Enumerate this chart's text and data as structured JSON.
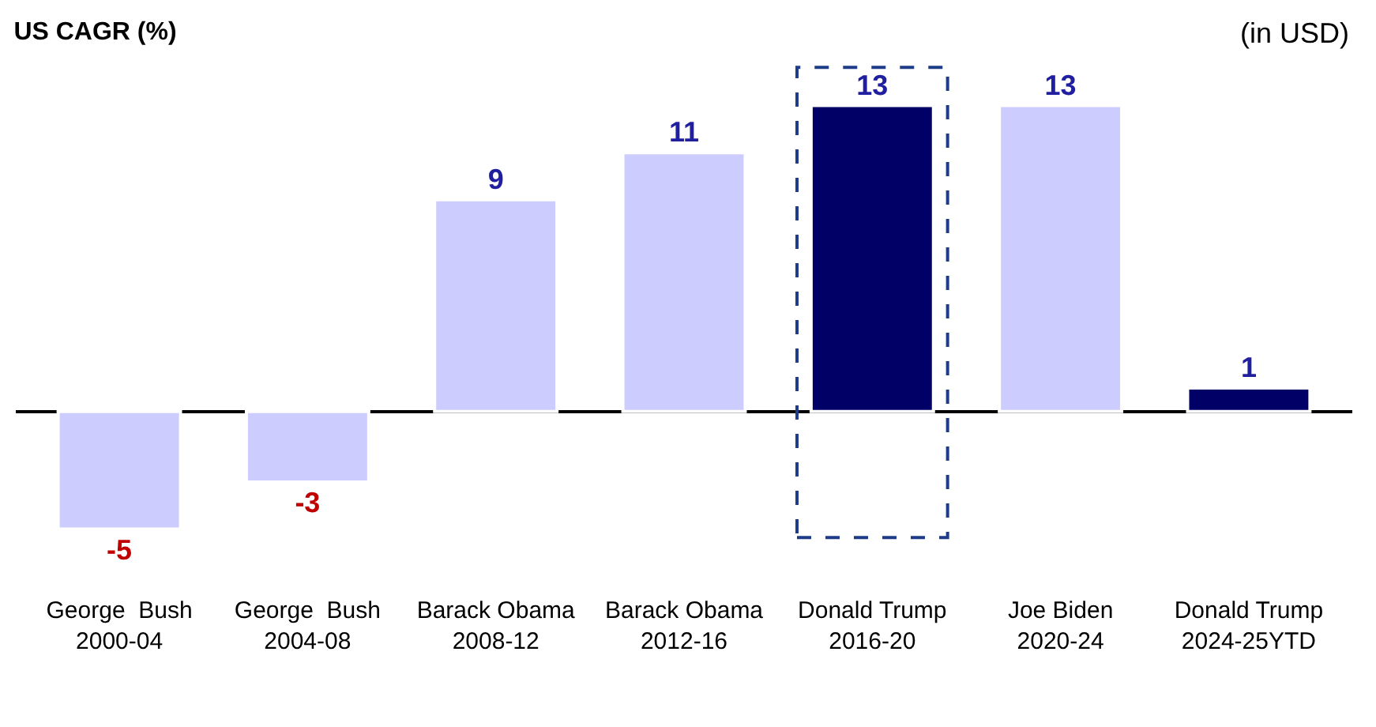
{
  "chart_data": {
    "type": "bar",
    "title": "US CAGR (%)",
    "annotations": [
      "(in USD)"
    ],
    "categories": [
      "George  Bush 2000-04",
      "George  Bush 2004-08",
      "Barack Obama 2008-12",
      "Barack Obama 2012-16",
      "Donald Trump 2016-20",
      "Joe Biden 2020-24",
      "Donald Trump 2024-25YTD"
    ],
    "values": [
      -5,
      -3,
      9,
      11,
      13,
      13,
      1
    ],
    "colors": [
      "#ccccff",
      "#ccccff",
      "#ccccff",
      "#ccccff",
      "#000066",
      "#ccccff",
      "#000066"
    ],
    "data_labels": true
  }
}
